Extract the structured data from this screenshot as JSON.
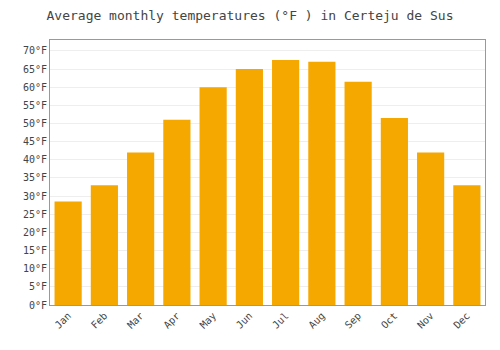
{
  "chart_data": {
    "type": "bar",
    "title": "Average monthly temperatures (°F ) in Certeju de Sus",
    "categories": [
      "Jan",
      "Feb",
      "Mar",
      "Apr",
      "May",
      "Jun",
      "Jul",
      "Aug",
      "Sep",
      "Oct",
      "Nov",
      "Dec"
    ],
    "values": [
      28.5,
      33,
      42,
      51,
      60,
      65,
      67.5,
      67,
      61.5,
      51.5,
      42,
      33
    ],
    "color": "#F5A800",
    "ylim": [
      0,
      73
    ],
    "yticks": [
      {
        "value": 0,
        "label": "0°F"
      },
      {
        "value": 5,
        "label": "5°F"
      },
      {
        "value": 10,
        "label": "10°F"
      },
      {
        "value": 15,
        "label": "15°F"
      },
      {
        "value": 20,
        "label": "20°F"
      },
      {
        "value": 25,
        "label": "25°F"
      },
      {
        "value": 30,
        "label": "30°F"
      },
      {
        "value": 35,
        "label": "35°F"
      },
      {
        "value": 40,
        "label": "40°F"
      },
      {
        "value": 45,
        "label": "45°F"
      },
      {
        "value": 50,
        "label": "50°F"
      },
      {
        "value": 55,
        "label": "55°F"
      },
      {
        "value": 60,
        "label": "60°F"
      },
      {
        "value": 65,
        "label": "65°F"
      },
      {
        "value": 70,
        "label": "70°F"
      }
    ],
    "grid": true
  }
}
